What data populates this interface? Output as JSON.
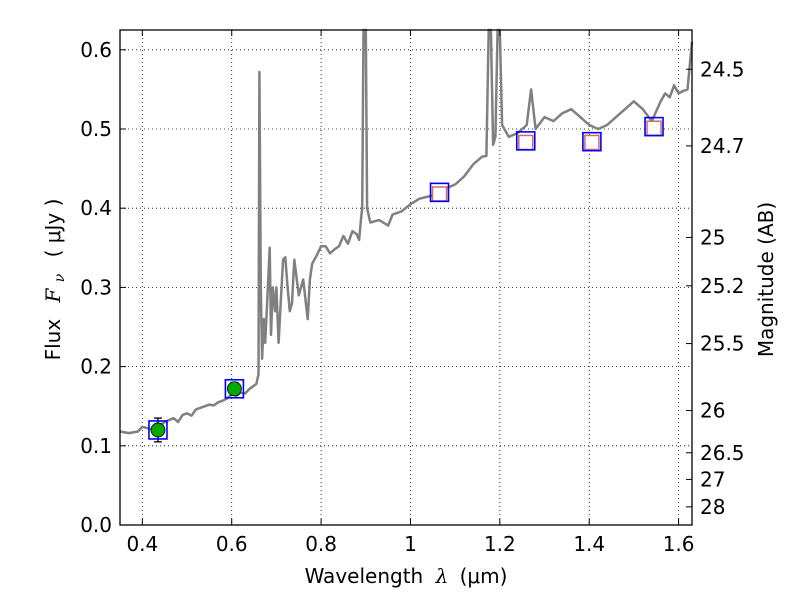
{
  "chart_data": {
    "type": "line",
    "xlabel": {
      "text": "Wavelength",
      "symbol": "λ",
      "unit": "(μm)"
    },
    "ylabel": {
      "text": "Flux",
      "symbol": "F",
      "subscript": "ν",
      "unit": "( μJy )"
    },
    "y2label": "Magnitude (AB)",
    "xlim": [
      0.35,
      1.63
    ],
    "ylim": [
      0.0,
      0.625
    ],
    "grid": true,
    "x_ticks": [
      0.4,
      0.6,
      0.8,
      1.0,
      1.2,
      1.4,
      1.6
    ],
    "x_tick_labels": [
      "0.4",
      "0.6",
      "0.8",
      "1",
      "1.2",
      "1.4",
      "1.6"
    ],
    "y_ticks": [
      0.0,
      0.1,
      0.2,
      0.3,
      0.4,
      0.5,
      0.6
    ],
    "y_tick_labels": [
      "0.0",
      "0.1",
      "0.2",
      "0.3",
      "0.4",
      "0.5",
      "0.6"
    ],
    "y2_ticks": [
      {
        "mag": 24.5,
        "label": "24.5"
      },
      {
        "mag": 24.7,
        "label": "24.7"
      },
      {
        "mag": 25,
        "label": "25"
      },
      {
        "mag": 25.2,
        "label": "25.2"
      },
      {
        "mag": 25.5,
        "label": "25.5"
      },
      {
        "mag": 26,
        "label": "26"
      },
      {
        "mag": 26.5,
        "label": "26.5"
      },
      {
        "mag": 27,
        "label": "27"
      },
      {
        "mag": 28,
        "label": "28"
      }
    ],
    "series": [
      {
        "kind": "model-spectrum",
        "color": "#808080",
        "points": [
          [
            0.35,
            0.118
          ],
          [
            0.37,
            0.116
          ],
          [
            0.39,
            0.118
          ],
          [
            0.4,
            0.124
          ],
          [
            0.42,
            0.121
          ],
          [
            0.44,
            0.126
          ],
          [
            0.45,
            0.13
          ],
          [
            0.47,
            0.135
          ],
          [
            0.48,
            0.13
          ],
          [
            0.49,
            0.139
          ],
          [
            0.5,
            0.141
          ],
          [
            0.51,
            0.138
          ],
          [
            0.52,
            0.146
          ],
          [
            0.54,
            0.15
          ],
          [
            0.55,
            0.152
          ],
          [
            0.56,
            0.151
          ],
          [
            0.57,
            0.155
          ],
          [
            0.58,
            0.157
          ],
          [
            0.59,
            0.16
          ],
          [
            0.6,
            0.165
          ],
          [
            0.61,
            0.163
          ],
          [
            0.62,
            0.167
          ],
          [
            0.63,
            0.166
          ],
          [
            0.64,
            0.172
          ],
          [
            0.655,
            0.178
          ],
          [
            0.66,
            0.19
          ],
          [
            0.662,
            0.572
          ],
          [
            0.665,
            0.3
          ],
          [
            0.668,
            0.21
          ],
          [
            0.672,
            0.26
          ],
          [
            0.675,
            0.23
          ],
          [
            0.68,
            0.29
          ],
          [
            0.685,
            0.35
          ],
          [
            0.688,
            0.24
          ],
          [
            0.692,
            0.3
          ],
          [
            0.697,
            0.27
          ],
          [
            0.7,
            0.3
          ],
          [
            0.705,
            0.23
          ],
          [
            0.71,
            0.285
          ],
          [
            0.715,
            0.335
          ],
          [
            0.72,
            0.338
          ],
          [
            0.725,
            0.3
          ],
          [
            0.73,
            0.27
          ],
          [
            0.735,
            0.28
          ],
          [
            0.74,
            0.335
          ],
          [
            0.75,
            0.29
          ],
          [
            0.76,
            0.31
          ],
          [
            0.77,
            0.26
          ],
          [
            0.775,
            0.31
          ],
          [
            0.78,
            0.33
          ],
          [
            0.79,
            0.34
          ],
          [
            0.8,
            0.352
          ],
          [
            0.81,
            0.352
          ],
          [
            0.82,
            0.343
          ],
          [
            0.83,
            0.348
          ],
          [
            0.84,
            0.352
          ],
          [
            0.85,
            0.365
          ],
          [
            0.86,
            0.355
          ],
          [
            0.87,
            0.371
          ],
          [
            0.88,
            0.367
          ],
          [
            0.885,
            0.36
          ],
          [
            0.89,
            0.39
          ],
          [
            0.892,
            0.4
          ],
          [
            0.895,
            0.625
          ],
          [
            0.9,
            0.625
          ],
          [
            0.903,
            0.4
          ],
          [
            0.91,
            0.382
          ],
          [
            0.93,
            0.385
          ],
          [
            0.95,
            0.378
          ],
          [
            0.96,
            0.392
          ],
          [
            0.98,
            0.396
          ],
          [
            1.0,
            0.405
          ],
          [
            1.02,
            0.412
          ],
          [
            1.05,
            0.416
          ],
          [
            1.08,
            0.425
          ],
          [
            1.1,
            0.43
          ],
          [
            1.12,
            0.44
          ],
          [
            1.14,
            0.455
          ],
          [
            1.16,
            0.465
          ],
          [
            1.17,
            0.466
          ],
          [
            1.175,
            0.625
          ],
          [
            1.18,
            0.625
          ],
          [
            1.185,
            0.48
          ],
          [
            1.19,
            0.49
          ],
          [
            1.195,
            0.625
          ],
          [
            1.2,
            0.625
          ],
          [
            1.205,
            0.505
          ],
          [
            1.22,
            0.49
          ],
          [
            1.24,
            0.495
          ],
          [
            1.26,
            0.505
          ],
          [
            1.27,
            0.55
          ],
          [
            1.28,
            0.5
          ],
          [
            1.3,
            0.515
          ],
          [
            1.32,
            0.51
          ],
          [
            1.34,
            0.52
          ],
          [
            1.36,
            0.525
          ],
          [
            1.38,
            0.515
          ],
          [
            1.4,
            0.505
          ],
          [
            1.42,
            0.5
          ],
          [
            1.44,
            0.505
          ],
          [
            1.46,
            0.515
          ],
          [
            1.48,
            0.525
          ],
          [
            1.5,
            0.535
          ],
          [
            1.52,
            0.525
          ],
          [
            1.54,
            0.51
          ],
          [
            1.56,
            0.535
          ],
          [
            1.57,
            0.545
          ],
          [
            1.58,
            0.54
          ],
          [
            1.59,
            0.555
          ],
          [
            1.6,
            0.545
          ],
          [
            1.61,
            0.548
          ],
          [
            1.62,
            0.55
          ],
          [
            1.63,
            0.61
          ]
        ]
      },
      {
        "kind": "model-photometry",
        "marker": "square",
        "color": "#0000ff",
        "points": [
          [
            0.435,
            0.12
          ],
          [
            0.606,
            0.172
          ],
          [
            1.065,
            0.42
          ],
          [
            1.258,
            0.485
          ],
          [
            1.406,
            0.484
          ],
          [
            1.545,
            0.503
          ]
        ]
      },
      {
        "kind": "observed-detection",
        "marker": "circle",
        "color": "#00aa00",
        "points": [
          {
            "x": 0.435,
            "y": 0.12,
            "yerr": 0.015
          },
          {
            "x": 0.606,
            "y": 0.172,
            "yerr": 0.008
          }
        ]
      },
      {
        "kind": "observed-other",
        "marker": "square-open",
        "color": "#d46a6a",
        "points": [
          [
            1.065,
            0.418
          ],
          [
            1.258,
            0.483
          ],
          [
            1.406,
            0.483
          ],
          [
            1.545,
            0.501
          ]
        ]
      }
    ]
  }
}
